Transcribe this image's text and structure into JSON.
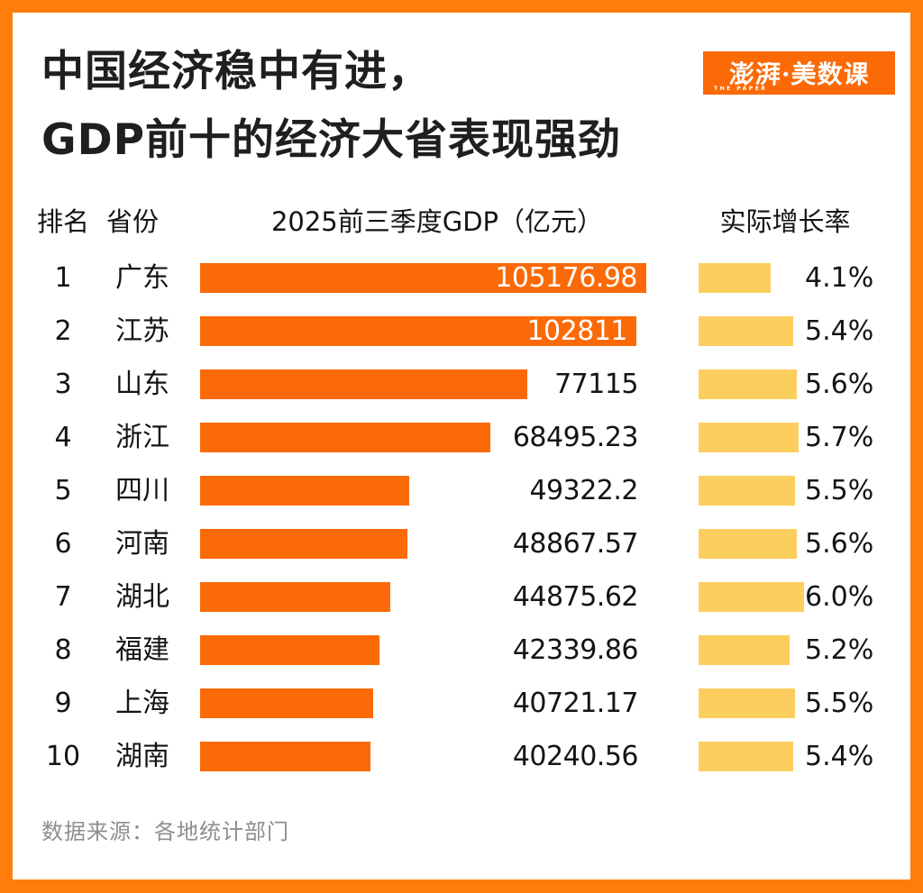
{
  "title": {
    "line1": "中国经济稳中有进，",
    "line2": "GDP前十的经济大省表现强劲"
  },
  "logo": {
    "text": "澎湃·美数课",
    "subtext": "THE PAPER"
  },
  "table_headers": {
    "rank": "排名",
    "province": "省份",
    "gdp": "2025前三季度GDP（亿元）",
    "growth": "实际增长率"
  },
  "rows": [
    {
      "rank": "1",
      "province": "广东",
      "gdp": 105176.98,
      "gdp_label": "105176.98",
      "growth": 4.1,
      "growth_label": "4.1%"
    },
    {
      "rank": "2",
      "province": "江苏",
      "gdp": 102811,
      "gdp_label": "102811",
      "growth": 5.4,
      "growth_label": "5.4%"
    },
    {
      "rank": "3",
      "province": "山东",
      "gdp": 77115,
      "gdp_label": "77115",
      "growth": 5.6,
      "growth_label": "5.6%"
    },
    {
      "rank": "4",
      "province": "浙江",
      "gdp": 68495.23,
      "gdp_label": "68495.23",
      "growth": 5.7,
      "growth_label": "5.7%"
    },
    {
      "rank": "5",
      "province": "四川",
      "gdp": 49322.2,
      "gdp_label": "49322.2",
      "growth": 5.5,
      "growth_label": "5.5%"
    },
    {
      "rank": "6",
      "province": "河南",
      "gdp": 48867.57,
      "gdp_label": "48867.57",
      "growth": 5.6,
      "growth_label": "5.6%"
    },
    {
      "rank": "7",
      "province": "湖北",
      "gdp": 44875.62,
      "gdp_label": "44875.62",
      "growth": 6.0,
      "growth_label": "6.0%"
    },
    {
      "rank": "8",
      "province": "福建",
      "gdp": 42339.86,
      "gdp_label": "42339.86",
      "growth": 5.2,
      "growth_label": "5.2%"
    },
    {
      "rank": "9",
      "province": "上海",
      "gdp": 40721.17,
      "gdp_label": "40721.17",
      "growth": 5.5,
      "growth_label": "5.5%"
    },
    {
      "rank": "10",
      "province": "湖南",
      "gdp": 40240.56,
      "gdp_label": "40240.56",
      "growth": 5.4,
      "growth_label": "5.4%"
    }
  ],
  "footer": {
    "source": "数据来源：各地统计部门"
  },
  "colors": {
    "frame": "#FF7D0A",
    "bar_orange": "#FB6A06",
    "bar_yellow": "#FCCE5E",
    "title_text": "#1F1F1F",
    "value_inside_text": "#FFFFFF",
    "source_text": "#8E8E8E"
  },
  "chart_data": {
    "type": "bar",
    "title": "中国经济稳中有进，GDP前十的经济大省表现强劲",
    "orientation": "horizontal",
    "categories": [
      "广东",
      "江苏",
      "山东",
      "浙江",
      "四川",
      "河南",
      "湖北",
      "福建",
      "上海",
      "湖南"
    ],
    "ranks": [
      1,
      2,
      3,
      4,
      5,
      6,
      7,
      8,
      9,
      10
    ],
    "series": [
      {
        "name": "2025前三季度GDP（亿元）",
        "values": [
          105176.98,
          102811,
          77115,
          68495.23,
          49322.2,
          48867.57,
          44875.62,
          42339.86,
          40721.17,
          40240.56
        ],
        "color": "#FB6A06"
      },
      {
        "name": "实际增长率",
        "unit": "%",
        "values": [
          4.1,
          5.4,
          5.6,
          5.7,
          5.5,
          5.6,
          6.0,
          5.2,
          5.5,
          5.4
        ],
        "color": "#FCCE5E"
      }
    ],
    "data_labels": true,
    "grid": false,
    "axes_shown": false,
    "source": "数据来源：各地统计部门"
  }
}
